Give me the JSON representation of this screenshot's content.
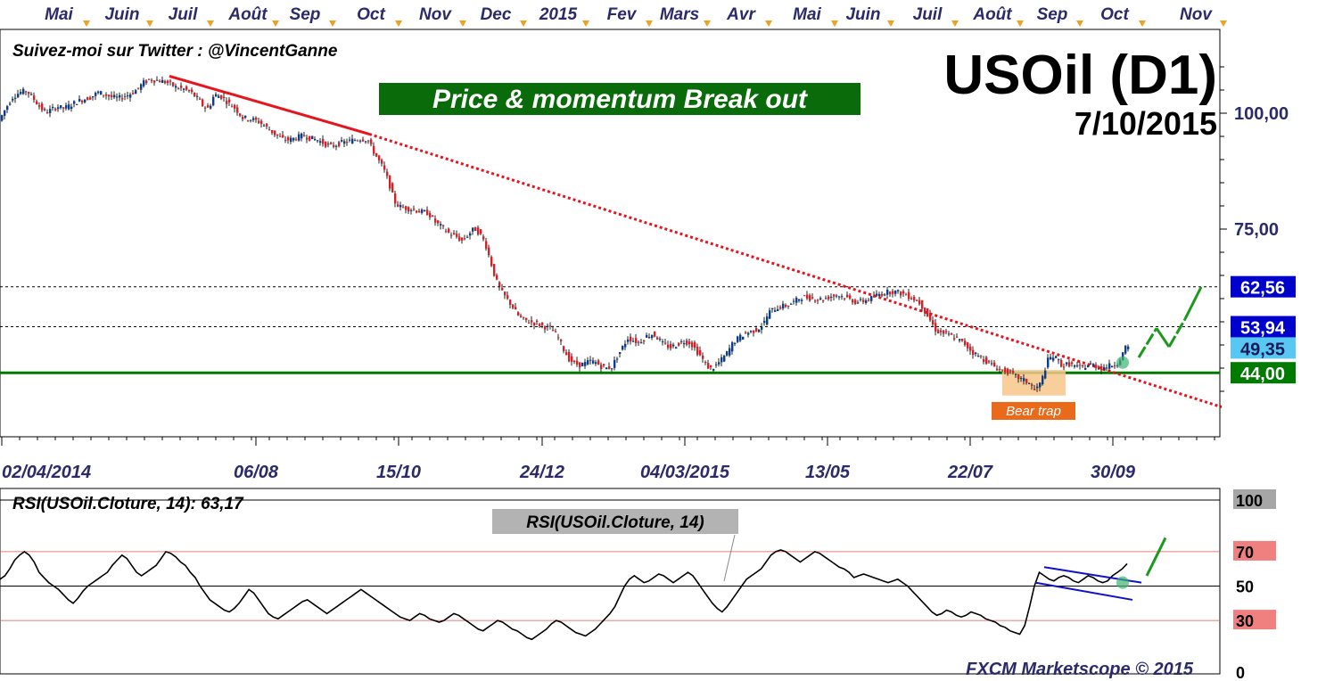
{
  "chart_data": [
    {
      "type": "candlestick",
      "months_top": [
        "Mai",
        "Juin",
        "Juil",
        "Août",
        "Sep",
        "Oct",
        "Nov",
        "Dec",
        "2015",
        "Fev",
        "Mars",
        "Avr",
        "Mai",
        "Juin",
        "Juil",
        "Août",
        "Sep",
        "Oct",
        "Nov"
      ],
      "date_labels": [
        "02/04/2014",
        "06/08",
        "15/10",
        "24/12",
        "04/03/2015",
        "13/05",
        "22/07",
        "30/09"
      ],
      "twitter": "Suivez-moi sur Twitter : @VincentGanne",
      "title": "USOil (D1)",
      "date": "7/10/2015",
      "banner": "Price & momentum Break out",
      "ylim": [
        35,
        110
      ],
      "yticks": [
        {
          "label": "100,00",
          "value": 100
        },
        {
          "label": "75,00",
          "value": 75
        }
      ],
      "levels": [
        {
          "label": "62,56",
          "value": 62.56,
          "color": "#0000cc",
          "style": "dashed"
        },
        {
          "label": "53,94",
          "value": 53.94,
          "color": "#0000cc",
          "style": "dashed"
        },
        {
          "label": "49,35",
          "value": 49.35,
          "color": "#58c8f2",
          "style": "none"
        },
        {
          "label": "44,00",
          "value": 44.0,
          "color": "#007a00",
          "style": "solid"
        }
      ],
      "bear_trap_label": "Bear trap",
      "price_path": [
        [
          0,
          98
        ],
        [
          8,
          101
        ],
        [
          16,
          103.5
        ],
        [
          24,
          104.5
        ],
        [
          32,
          104.8
        ],
        [
          40,
          103
        ],
        [
          48,
          101
        ],
        [
          54,
          100.2
        ],
        [
          60,
          100.8
        ],
        [
          66,
          101.5
        ],
        [
          72,
          101
        ],
        [
          80,
          101.6
        ],
        [
          88,
          102.5
        ],
        [
          96,
          103
        ],
        [
          104,
          103.5
        ],
        [
          112,
          104.5
        ],
        [
          120,
          104
        ],
        [
          128,
          103.4
        ],
        [
          136,
          103.3
        ],
        [
          144,
          103.8
        ],
        [
          150,
          104.4
        ],
        [
          156,
          105.2
        ],
        [
          162,
          106.5
        ],
        [
          170,
          107.3
        ],
        [
          178,
          107.1
        ],
        [
          186,
          106.8
        ],
        [
          192,
          106.4
        ],
        [
          200,
          105.5
        ],
        [
          208,
          105.2
        ],
        [
          216,
          104.5
        ],
        [
          224,
          103
        ],
        [
          230,
          101.5
        ],
        [
          236,
          101
        ],
        [
          242,
          104
        ],
        [
          250,
          103.6
        ],
        [
          258,
          102.2
        ],
        [
          266,
          101
        ],
        [
          274,
          99
        ],
        [
          282,
          98.8
        ],
        [
          292,
          98.2
        ],
        [
          302,
          96.8
        ],
        [
          310,
          95.5
        ],
        [
          318,
          94.5
        ],
        [
          326,
          94.2
        ],
        [
          334,
          94.7
        ],
        [
          342,
          95.2
        ],
        [
          350,
          94.6
        ],
        [
          358,
          94.2
        ],
        [
          366,
          93.4
        ],
        [
          374,
          92.8
        ],
        [
          382,
          93.5
        ],
        [
          390,
          93.8
        ],
        [
          398,
          94.2
        ],
        [
          406,
          94.5
        ],
        [
          414,
          94.3
        ],
        [
          420,
          92
        ],
        [
          426,
          90
        ],
        [
          432,
          88
        ],
        [
          438,
          85
        ],
        [
          444,
          81
        ],
        [
          450,
          79.8
        ],
        [
          458,
          79.5
        ],
        [
          466,
          79.2
        ],
        [
          474,
          78.7
        ],
        [
          482,
          78.5
        ],
        [
          490,
          76.5
        ],
        [
          498,
          75.3
        ],
        [
          506,
          74
        ],
        [
          514,
          73.3
        ],
        [
          520,
          72.5
        ],
        [
          528,
          74
        ],
        [
          534,
          75.2
        ],
        [
          540,
          74
        ],
        [
          546,
          72
        ],
        [
          552,
          68
        ],
        [
          558,
          64
        ],
        [
          564,
          61.5
        ],
        [
          570,
          60
        ],
        [
          576,
          58.5
        ],
        [
          582,
          56.5
        ],
        [
          588,
          55.5
        ],
        [
          596,
          55
        ],
        [
          604,
          54.6
        ],
        [
          612,
          54
        ],
        [
          620,
          53.5
        ],
        [
          628,
          51.5
        ],
        [
          634,
          49
        ],
        [
          640,
          47
        ],
        [
          646,
          46
        ],
        [
          652,
          45.7
        ],
        [
          658,
          46
        ],
        [
          664,
          46.5
        ],
        [
          670,
          46.2
        ],
        [
          676,
          45.4
        ],
        [
          682,
          45
        ],
        [
          688,
          45.3
        ],
        [
          694,
          47.5
        ],
        [
          700,
          49.5
        ],
        [
          706,
          51.5
        ],
        [
          712,
          51
        ],
        [
          718,
          50.5
        ],
        [
          726,
          51.8
        ],
        [
          734,
          52.4
        ],
        [
          740,
          51.4
        ],
        [
          746,
          50
        ],
        [
          754,
          49.5
        ],
        [
          760,
          50
        ],
        [
          768,
          50.8
        ],
        [
          776,
          50.5
        ],
        [
          782,
          49
        ],
        [
          788,
          47.5
        ],
        [
          794,
          45.5
        ],
        [
          800,
          44.8
        ],
        [
          806,
          45.8
        ],
        [
          812,
          47
        ],
        [
          818,
          48.5
        ],
        [
          824,
          50.5
        ],
        [
          830,
          51.5
        ],
        [
          838,
          52.5
        ],
        [
          846,
          53
        ],
        [
          852,
          53.5
        ],
        [
          858,
          54.5
        ],
        [
          864,
          57
        ],
        [
          870,
          57.8
        ],
        [
          878,
          58.3
        ],
        [
          886,
          58.6
        ],
        [
          894,
          59.5
        ],
        [
          900,
          60.3
        ],
        [
          908,
          60.2
        ],
        [
          916,
          60
        ],
        [
          924,
          59.8
        ],
        [
          932,
          60.4
        ],
        [
          940,
          60.8
        ],
        [
          948,
          60.4
        ],
        [
          956,
          59.8
        ],
        [
          962,
          59.2
        ],
        [
          970,
          59.5
        ],
        [
          978,
          60
        ],
        [
          986,
          60.8
        ],
        [
          994,
          61.3
        ],
        [
          1002,
          61.6
        ],
        [
          1010,
          61.3
        ],
        [
          1018,
          60.8
        ],
        [
          1026,
          60
        ],
        [
          1034,
          59
        ],
        [
          1040,
          57
        ],
        [
          1046,
          55
        ],
        [
          1052,
          53
        ],
        [
          1060,
          52.5
        ],
        [
          1068,
          52
        ],
        [
          1076,
          51.2
        ],
        [
          1084,
          50.2
        ],
        [
          1092,
          48.5
        ],
        [
          1100,
          47.5
        ],
        [
          1108,
          46.5
        ],
        [
          1116,
          45.5
        ],
        [
          1124,
          44.5
        ],
        [
          1132,
          44.3
        ],
        [
          1140,
          43.3
        ],
        [
          1148,
          42.5
        ],
        [
          1156,
          41.8
        ],
        [
          1162,
          40.2
        ],
        [
          1168,
          41.5
        ],
        [
          1172,
          43.5
        ],
        [
          1176,
          46.5
        ],
        [
          1182,
          47.6
        ],
        [
          1188,
          46.8
        ],
        [
          1194,
          45.3
        ],
        [
          1200,
          46
        ],
        [
          1206,
          45.5
        ],
        [
          1212,
          45
        ],
        [
          1218,
          45.3
        ],
        [
          1224,
          45.8
        ],
        [
          1230,
          45.6
        ],
        [
          1236,
          45
        ],
        [
          1242,
          45.3
        ],
        [
          1248,
          45.6
        ],
        [
          1254,
          46
        ],
        [
          1258,
          47
        ],
        [
          1264,
          49.3
        ]
      ],
      "trendline": [
        [
          190,
          108
        ],
        [
          414,
          95.5
        ]
      ],
      "trendline_ext": [
        [
          414,
          95.5
        ],
        [
          1370,
          36.6
        ]
      ],
      "projection": [
        [
          1277,
          47.3
        ],
        [
          1297,
          53.6
        ],
        [
          1311,
          49.6
        ],
        [
          1329,
          55.6
        ],
        [
          1347,
          62.5
        ]
      ]
    },
    {
      "type": "line",
      "title": "RSI(USOil.Cloture, 14): 63,17",
      "series_label": "RSI(USOil.Cloture, 14)",
      "ylim": [
        0,
        100
      ],
      "yticks": [
        {
          "label": "100",
          "value": 100
        },
        {
          "label": "70",
          "value": 70
        },
        {
          "label": "50",
          "value": 50
        },
        {
          "label": "30",
          "value": 30
        },
        {
          "label": "0",
          "value": 0
        }
      ],
      "footer": "FXCM Marketscope © 2015",
      "values": [
        54,
        56,
        60,
        65,
        68,
        70,
        68,
        64,
        58,
        55,
        52,
        50,
        48,
        45,
        42,
        40,
        43,
        47,
        50,
        52,
        54,
        56,
        58,
        62,
        65,
        68,
        66,
        62,
        58,
        56,
        58,
        60,
        62,
        66,
        70,
        69,
        67,
        64,
        62,
        58,
        55,
        50,
        46,
        42,
        40,
        38,
        36,
        35,
        37,
        40,
        44,
        48,
        46,
        42,
        38,
        34,
        32,
        31,
        33,
        35,
        37,
        39,
        41,
        42,
        40,
        38,
        36,
        34,
        36,
        38,
        40,
        42,
        44,
        46,
        48,
        46,
        44,
        42,
        40,
        38,
        36,
        34,
        32,
        31,
        30,
        32,
        34,
        33,
        31,
        30,
        29,
        30,
        32,
        34,
        33,
        31,
        29,
        27,
        25,
        24,
        26,
        28,
        30,
        29,
        27,
        25,
        24,
        22,
        20,
        19,
        21,
        23,
        25,
        28,
        30,
        29,
        27,
        25,
        23,
        22,
        21,
        23,
        25,
        28,
        31,
        34,
        38,
        44,
        50,
        54,
        56,
        54,
        52,
        53,
        55,
        57,
        56,
        54,
        52,
        54,
        56,
        58,
        56,
        52,
        48,
        44,
        40,
        37,
        35,
        38,
        42,
        46,
        50,
        54,
        56,
        58,
        60,
        64,
        68,
        70,
        71,
        70,
        68,
        66,
        64,
        66,
        68,
        70,
        69,
        67,
        65,
        63,
        61,
        60,
        58,
        55,
        56,
        57,
        56,
        55,
        54,
        53,
        52,
        53,
        54,
        52,
        50,
        47,
        44,
        41,
        38,
        35,
        33,
        34,
        36,
        35,
        33,
        32,
        33,
        35,
        34,
        33,
        31,
        30,
        29,
        27,
        26,
        24,
        23,
        22,
        27,
        38,
        50,
        58,
        56,
        54,
        53,
        55,
        56,
        55,
        53,
        52,
        54,
        56,
        55,
        53,
        52,
        53,
        56,
        58,
        60,
        63
      ]
    }
  ]
}
